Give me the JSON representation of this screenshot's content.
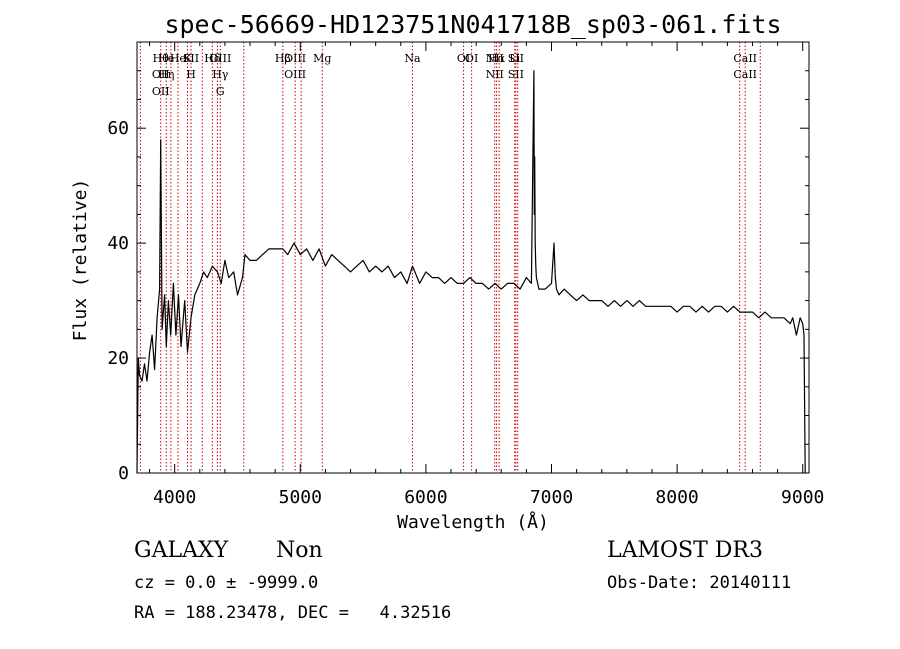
{
  "chart_data": {
    "type": "line",
    "title": "spec-56669-HD123751N041718B_sp03-061.fits",
    "xlabel": "Wavelength (Å)",
    "ylabel": "Flux (relative)",
    "xlim": [
      3700,
      9050
    ],
    "ylim": [
      0,
      75
    ],
    "xticks": [
      4000,
      5000,
      6000,
      7000,
      8000,
      9000
    ],
    "yticks": [
      0,
      20,
      40,
      60
    ],
    "grid": false,
    "line_color": "#000000",
    "marker_color": "#cc0000",
    "series": [
      {
        "x": [
          3700,
          3710,
          3720,
          3740,
          3760,
          3780,
          3800,
          3820,
          3840,
          3860,
          3880,
          3889,
          3900,
          3920,
          3933,
          3950,
          3968,
          3990,
          4010,
          4030,
          4050,
          4080,
          4102,
          4130,
          4160,
          4200,
          4230,
          4260,
          4300,
          4340,
          4370,
          4400,
          4430,
          4470,
          4500,
          4540,
          4560,
          4600,
          4650,
          4700,
          4750,
          4800,
          4861,
          4900,
          4950,
          5000,
          5050,
          5100,
          5150,
          5200,
          5250,
          5300,
          5350,
          5400,
          5450,
          5500,
          5550,
          5600,
          5650,
          5700,
          5750,
          5800,
          5850,
          5893,
          5950,
          6000,
          6050,
          6100,
          6150,
          6200,
          6250,
          6300,
          6350,
          6400,
          6450,
          6500,
          6550,
          6600,
          6650,
          6700,
          6750,
          6800,
          6840,
          6860,
          6863,
          6866,
          6870,
          6875,
          6880,
          6890,
          6900,
          6950,
          7000,
          7020,
          7030,
          7040,
          7060,
          7100,
          7150,
          7200,
          7250,
          7300,
          7350,
          7400,
          7450,
          7500,
          7550,
          7600,
          7650,
          7700,
          7750,
          7800,
          7850,
          7900,
          7950,
          8000,
          8050,
          8100,
          8150,
          8200,
          8250,
          8300,
          8350,
          8400,
          8450,
          8500,
          8550,
          8600,
          8650,
          8700,
          8750,
          8800,
          8850,
          8900,
          8920,
          8950,
          8980,
          9000,
          9010,
          9020
        ],
        "y": [
          0,
          20,
          17,
          16,
          19,
          16,
          21,
          24,
          18,
          27,
          32,
          58,
          25,
          31,
          22,
          30,
          24,
          33,
          24,
          31,
          22,
          30,
          21,
          27,
          31,
          33,
          35,
          34,
          36,
          35,
          33,
          37,
          34,
          35,
          31,
          34,
          38,
          37,
          37,
          38,
          39,
          39,
          39,
          38,
          40,
          38,
          39,
          37,
          39,
          36,
          38,
          37,
          36,
          35,
          36,
          37,
          35,
          36,
          35,
          36,
          34,
          35,
          33,
          36,
          33,
          35,
          34,
          34,
          33,
          34,
          33,
          33,
          34,
          33,
          33,
          32,
          33,
          32,
          33,
          33,
          32,
          34,
          33,
          70,
          45,
          55,
          40,
          36,
          34,
          33,
          32,
          32,
          33,
          40,
          34,
          32,
          31,
          32,
          31,
          30,
          31,
          30,
          30,
          30,
          29,
          30,
          29,
          30,
          29,
          30,
          29,
          29,
          29,
          29,
          29,
          28,
          29,
          29,
          28,
          29,
          28,
          29,
          29,
          28,
          29,
          28,
          28,
          28,
          27,
          28,
          27,
          27,
          27,
          26,
          27,
          24,
          27,
          26,
          24,
          0
        ]
      }
    ],
    "lines": [
      {
        "wl": 3727,
        "labels": []
      },
      {
        "wl": 3889,
        "labels": [
          "Hθ",
          "OII",
          "OII"
        ]
      },
      {
        "wl": 3933,
        "labels": [
          "He",
          "Hη"
        ]
      },
      {
        "wl": 3970,
        "labels": []
      },
      {
        "wl": 4026,
        "labels": [
          "He"
        ]
      },
      {
        "wl": 4102,
        "labels": [
          "K"
        ]
      },
      {
        "wl": 4130,
        "labels": [
          "SII",
          "H"
        ]
      },
      {
        "wl": 4220,
        "labels": []
      },
      {
        "wl": 4300,
        "labels": [
          "Hδ"
        ]
      },
      {
        "wl": 4340,
        "labels": []
      },
      {
        "wl": 4363,
        "labels": [
          "OIII",
          "Hγ",
          "G"
        ]
      },
      {
        "wl": 4550,
        "labels": []
      },
      {
        "wl": 4861,
        "labels": [
          "Hβ"
        ]
      },
      {
        "wl": 4959,
        "labels": [
          "OIII",
          "OIII"
        ]
      },
      {
        "wl": 5007,
        "labels": []
      },
      {
        "wl": 5175,
        "labels": [
          "Mg"
        ]
      },
      {
        "wl": 5893,
        "labels": [
          "Na"
        ]
      },
      {
        "wl": 6300,
        "labels": [
          "OI"
        ]
      },
      {
        "wl": 6364,
        "labels": [
          "OI"
        ]
      },
      {
        "wl": 6548,
        "labels": [
          "NII",
          "NII"
        ]
      },
      {
        "wl": 6563,
        "labels": [
          "Hα"
        ]
      },
      {
        "wl": 6583,
        "labels": []
      },
      {
        "wl": 6707,
        "labels": [
          "Li"
        ]
      },
      {
        "wl": 6716,
        "labels": [
          "SII",
          "SII"
        ]
      },
      {
        "wl": 6731,
        "labels": []
      },
      {
        "wl": 8498,
        "labels": []
      },
      {
        "wl": 8542,
        "labels": [
          "CaII",
          "CaII"
        ]
      },
      {
        "wl": 8662,
        "labels": []
      }
    ]
  },
  "info": {
    "class_label": "GALAXY",
    "subclass_label": "Non",
    "survey_label": "LAMOST DR3",
    "cz_text": "cz = 0.0 ± -9999.0",
    "obs_date_text": "Obs-Date: 20140111",
    "radec_text": "RA = 188.23478, DEC =   4.32516"
  }
}
